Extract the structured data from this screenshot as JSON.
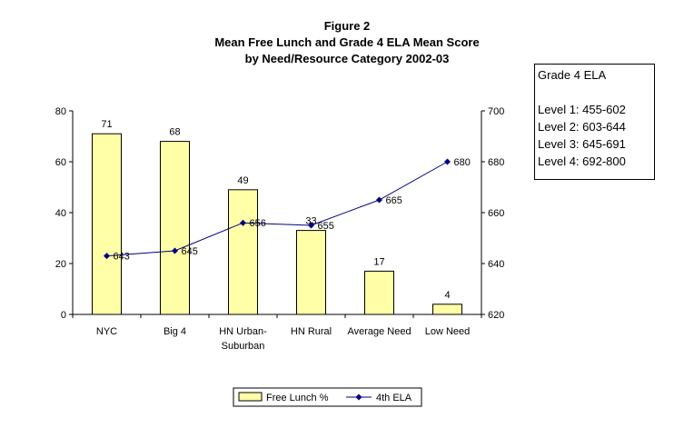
{
  "title_lines": [
    "Figure 2",
    "Mean Free Lunch and Grade 4 ELA Mean Score",
    "by Need/Resource Category 2002-03"
  ],
  "info_box": {
    "heading": "Grade 4 ELA",
    "levels": [
      "Level 1: 455-602",
      "Level 2: 603-644",
      "Level 3: 645-691",
      "Level 4: 692-800"
    ]
  },
  "chart_data": {
    "type": "bar",
    "title": "Figure 2 Mean Free Lunch and Grade 4 ELA Mean Score by Need/Resource Category 2002-03",
    "categories": [
      [
        "NYC"
      ],
      [
        "Big 4"
      ],
      [
        "HN Urban-",
        "Suburban"
      ],
      [
        "HN Rural"
      ],
      [
        "Average Need"
      ],
      [
        "Low Need"
      ]
    ],
    "series": [
      {
        "name": "Free Lunch %",
        "type": "bar",
        "axis": "left",
        "values": [
          71,
          68,
          49,
          33,
          17,
          4
        ],
        "color": "#FFFFA8",
        "labels": [
          "71",
          "68",
          "49",
          "33",
          "17",
          "4"
        ]
      },
      {
        "name": "4th ELA",
        "type": "line",
        "axis": "right",
        "values": [
          643,
          645,
          656,
          655,
          665,
          680
        ],
        "color": "#000080",
        "labels": [
          "643",
          "645",
          "656",
          "655",
          "665",
          "680"
        ]
      }
    ],
    "y_left": {
      "min": 0,
      "max": 80,
      "ticks": [
        0,
        20,
        40,
        60,
        80
      ]
    },
    "y_right": {
      "min": 620,
      "max": 700,
      "ticks": [
        620,
        640,
        660,
        680,
        700
      ]
    },
    "grid": false,
    "legend_position": "bottom"
  }
}
